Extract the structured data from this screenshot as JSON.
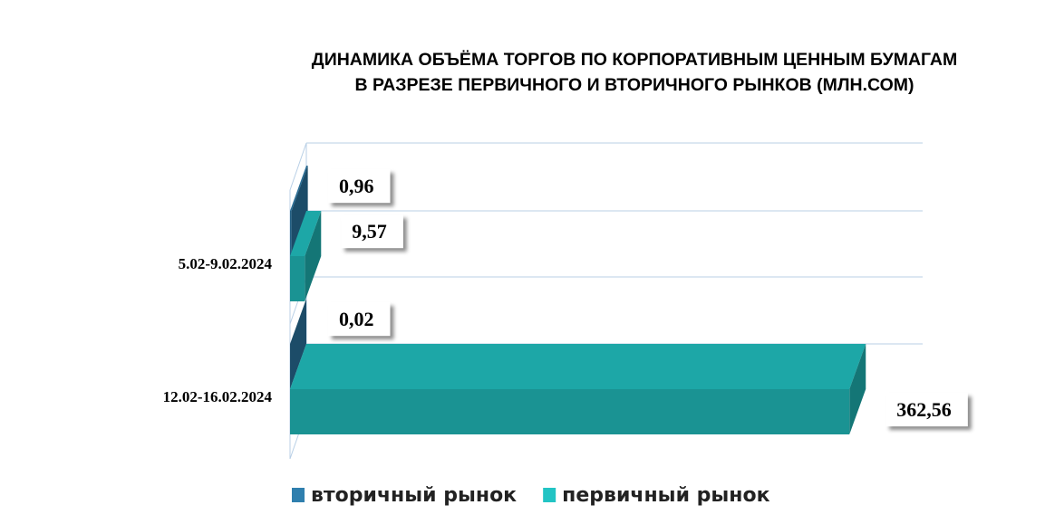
{
  "chart_data": {
    "type": "bar3d",
    "title": [
      "ДИНАМИКА ОБЪЁМА ТОРГОВ ПО КОРПОРАТИВНЫМ ЦЕННЫМ БУМАГАМ",
      "В РАЗРЕЗЕ ПЕРВИЧНОГО И ВТОРИЧНОГО РЫНКОВ  (МЛН.СОМ)"
    ],
    "categories": [
      "5.02-9.02.2024",
      "12.02-16.02.2024"
    ],
    "series": [
      {
        "name": "вторичный рынок",
        "color": "#2f7fae",
        "values": [
          0.96,
          0.02
        ],
        "value_labels": [
          "0,96",
          "0,02"
        ]
      },
      {
        "name": "первичный рынок",
        "color": "#22c4c4",
        "values": [
          9.57,
          362.56
        ],
        "value_labels": [
          "9,57",
          "362,56"
        ]
      }
    ],
    "xlim": [
      0,
      410
    ],
    "legend": "bottom"
  }
}
